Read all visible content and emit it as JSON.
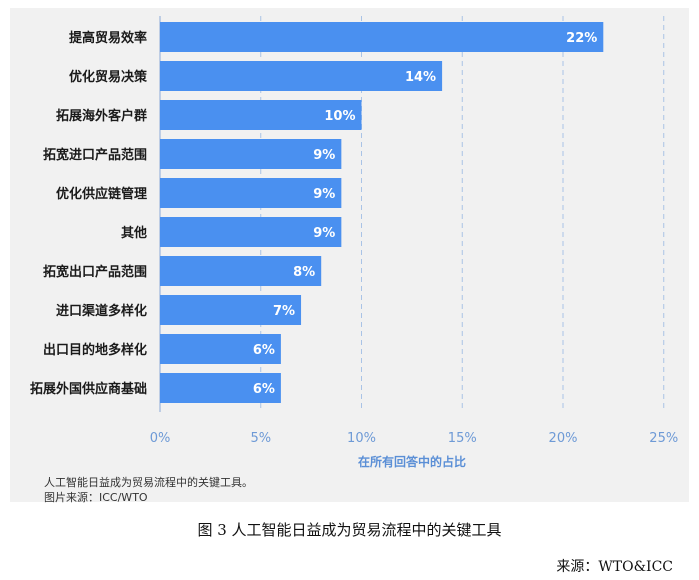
{
  "chart_data": {
    "type": "bar",
    "orientation": "horizontal",
    "categories": [
      "提高贸易效率",
      "优化贸易决策",
      "拓展海外客户群",
      "拓宽进口产品范围",
      "优化供应链管理",
      "其他",
      "拓宽出口产品范围",
      "进口渠道多样化",
      "出口目的地多样化",
      "拓展外国供应商基础"
    ],
    "values": [
      22,
      14,
      10,
      9,
      9,
      9,
      8,
      7,
      6,
      6
    ],
    "value_labels": [
      "22%",
      "14%",
      "10%",
      "9%",
      "9%",
      "9%",
      "8%",
      "7%",
      "6%",
      "6%"
    ],
    "xlabel": "在所有回答中的占比",
    "xticks": [
      "0%",
      "5%",
      "10%",
      "15%",
      "20%",
      "25%"
    ],
    "xtick_values": [
      0,
      5,
      10,
      15,
      20,
      25
    ],
    "xlim": [
      0,
      25
    ],
    "grid": "vertical dashed",
    "bar_color": "#4a90f0"
  },
  "notes": {
    "line1": "人工智能日益成为贸易流程中的关键工具。",
    "line2": "图片来源：ICC/WTO"
  },
  "caption": "图 3  人工智能日益成为贸易流程中的关键工具",
  "source": "来源：WTO&ICC"
}
